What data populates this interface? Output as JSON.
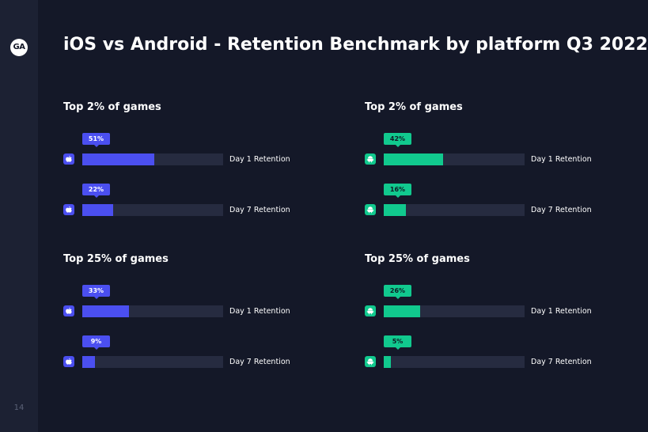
{
  "logo": {
    "text": "GA"
  },
  "page_number": "14",
  "title": "iOS vs Android - Retention Benchmark by platform Q3 2022",
  "colors": {
    "background": "#141828",
    "sidebar": "#1c2133",
    "track": "#262b40",
    "ios": "#4b4ff0",
    "android": "#11c98e"
  },
  "chart_data": [
    {
      "type": "bar",
      "orientation": "horizontal",
      "title": "Top 2% of games",
      "platform": "ios",
      "icon": "apple-icon",
      "categories": [
        "Day 1 Retention",
        "Day 7 Retention"
      ],
      "values": [
        51,
        22
      ],
      "value_labels": [
        "51%",
        "22%"
      ],
      "xlim": [
        0,
        100
      ]
    },
    {
      "type": "bar",
      "orientation": "horizontal",
      "title": "Top 2% of games",
      "platform": "android",
      "icon": "android-icon",
      "categories": [
        "Day 1 Retention",
        "Day 7 Retention"
      ],
      "values": [
        42,
        16
      ],
      "value_labels": [
        "42%",
        "16%"
      ],
      "xlim": [
        0,
        100
      ]
    },
    {
      "type": "bar",
      "orientation": "horizontal",
      "title": "Top 25% of games",
      "platform": "ios",
      "icon": "apple-icon",
      "categories": [
        "Day 1 Retention",
        "Day 7 Retention"
      ],
      "values": [
        33,
        9
      ],
      "value_labels": [
        "33%",
        "9%"
      ],
      "xlim": [
        0,
        100
      ]
    },
    {
      "type": "bar",
      "orientation": "horizontal",
      "title": "Top 25% of games",
      "platform": "android",
      "icon": "android-icon",
      "categories": [
        "Day 1 Retention",
        "Day 7 Retention"
      ],
      "values": [
        26,
        5
      ],
      "value_labels": [
        "26%",
        "5%"
      ],
      "xlim": [
        0,
        100
      ]
    }
  ]
}
